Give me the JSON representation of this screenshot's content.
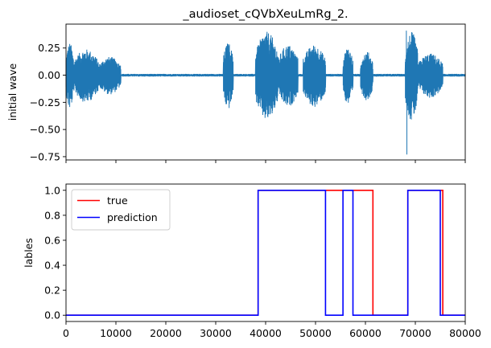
{
  "chart_data": [
    {
      "type": "line",
      "title": "_audioset_cQVbXeuLmRg_2.",
      "ylabel": "initial wave",
      "xlim": [
        0,
        80000
      ],
      "ylim": [
        -0.78,
        0.47
      ],
      "yticks": [
        -0.75,
        -0.5,
        -0.25,
        0.0,
        0.25
      ],
      "ytick_labels": [
        "−0.75",
        "−0.50",
        "−0.25",
        "0.00",
        "0.25"
      ],
      "xticks": [
        0,
        10000,
        20000,
        30000,
        40000,
        50000,
        60000,
        70000,
        80000
      ],
      "xtick_labels_visible": false,
      "color": "#1f77b4",
      "grid": false,
      "waveform": {
        "baseline_amplitude": 0.012,
        "bursts": [
          {
            "start": 0,
            "end": 1500,
            "amplitude": 0.3
          },
          {
            "start": 1500,
            "end": 6500,
            "amplitude": 0.24
          },
          {
            "start": 6500,
            "end": 11000,
            "amplitude": 0.17
          },
          {
            "start": 31500,
            "end": 33500,
            "amplitude": 0.3
          },
          {
            "start": 38000,
            "end": 42500,
            "amplitude": 0.4
          },
          {
            "start": 42500,
            "end": 46500,
            "amplitude": 0.28
          },
          {
            "start": 47500,
            "end": 52000,
            "amplitude": 0.28
          },
          {
            "start": 55500,
            "end": 57500,
            "amplitude": 0.26
          },
          {
            "start": 59000,
            "end": 61500,
            "amplitude": 0.22
          },
          {
            "start": 68000,
            "end": 70500,
            "amplitude": 0.4
          },
          {
            "start": 70500,
            "end": 75500,
            "amplitude": 0.2
          }
        ],
        "min_spike": {
          "x": 68300,
          "y": -0.73
        },
        "max_spike": {
          "x": 68200,
          "y": 0.41
        }
      }
    },
    {
      "type": "line",
      "ylabel": "lables",
      "xlim": [
        0,
        80000
      ],
      "ylim": [
        -0.05,
        1.05
      ],
      "yticks": [
        0.0,
        0.2,
        0.4,
        0.6,
        0.8,
        1.0
      ],
      "ytick_labels": [
        "0.0",
        "0.2",
        "0.4",
        "0.6",
        "0.8",
        "1.0"
      ],
      "xticks": [
        0,
        10000,
        20000,
        30000,
        40000,
        50000,
        60000,
        70000,
        80000
      ],
      "xtick_labels": [
        "0",
        "10000",
        "20000",
        "30000",
        "40000",
        "50000",
        "60000",
        "70000",
        "80000"
      ],
      "legend": {
        "placement": "upper-left"
      },
      "grid": false,
      "series": [
        {
          "name": "true",
          "color": "#ff0000",
          "x": [
            0,
            38500,
            38500,
            61500,
            61500,
            68500,
            68500,
            75500,
            75500,
            80000
          ],
          "y": [
            0,
            0,
            1,
            1,
            0,
            0,
            1,
            1,
            0,
            0
          ]
        },
        {
          "name": "prediction",
          "color": "#0000ff",
          "x": [
            0,
            38500,
            38500,
            52000,
            52000,
            55500,
            55500,
            57500,
            57500,
            68500,
            68500,
            75000,
            75000,
            80000
          ],
          "y": [
            0,
            0,
            1,
            1,
            0,
            0,
            1,
            1,
            0,
            0,
            1,
            1,
            0,
            0
          ]
        }
      ]
    }
  ]
}
